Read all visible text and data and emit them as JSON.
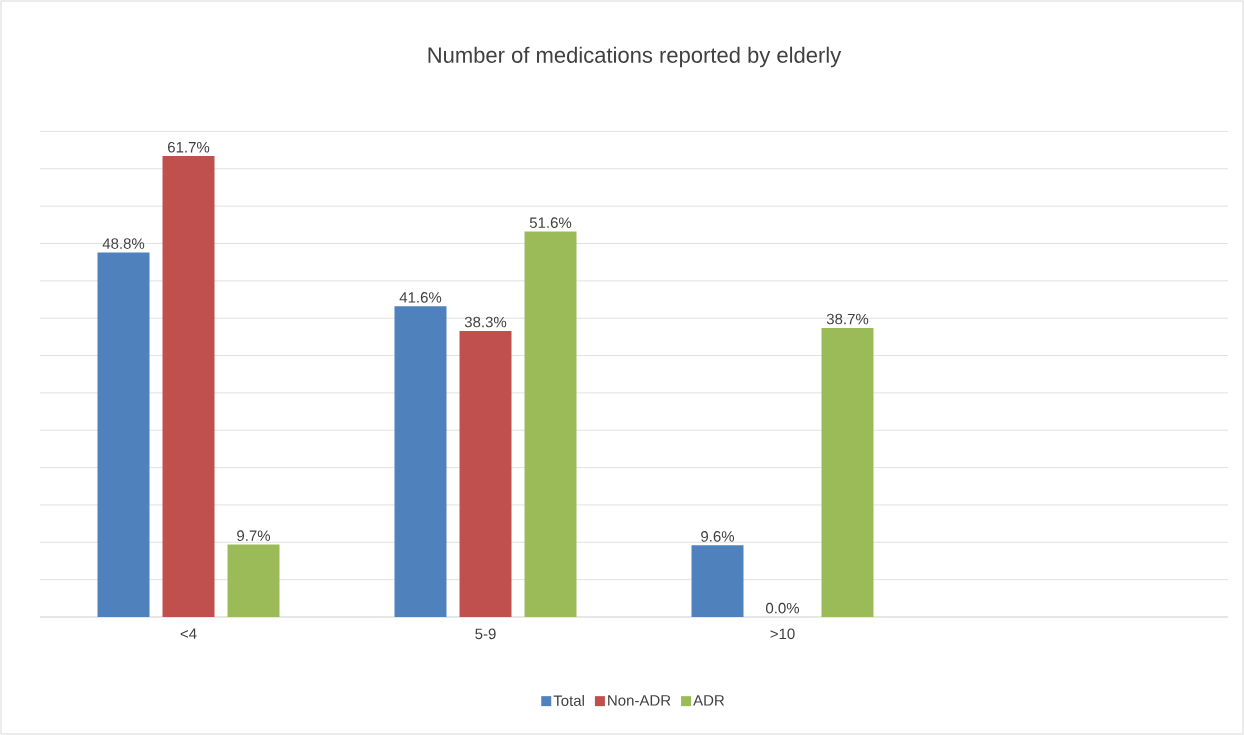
{
  "chart_data": {
    "type": "bar",
    "title": "Number of medications reported by elderly",
    "categories": [
      "<4",
      "5-9",
      ">10",
      null
    ],
    "series": [
      {
        "name": "Total",
        "color": "#4f81bd",
        "values": [
          48.8,
          41.6,
          9.6,
          null
        ],
        "value_labels": [
          "48.8%",
          "41.6%",
          "9.6%",
          null
        ]
      },
      {
        "name": "Non-ADR",
        "color": "#c0504d",
        "values": [
          61.7,
          38.3,
          0.0,
          null
        ],
        "value_labels": [
          "61.7%",
          "38.3%",
          "0.0%",
          null
        ]
      },
      {
        "name": "ADR",
        "color": "#9bbb59",
        "values": [
          9.7,
          51.6,
          38.7,
          null
        ],
        "value_labels": [
          "9.7%",
          "51.6%",
          "38.7%",
          null
        ]
      }
    ],
    "grid": "y",
    "legend": "bottom",
    "tick_labels": "x"
  }
}
